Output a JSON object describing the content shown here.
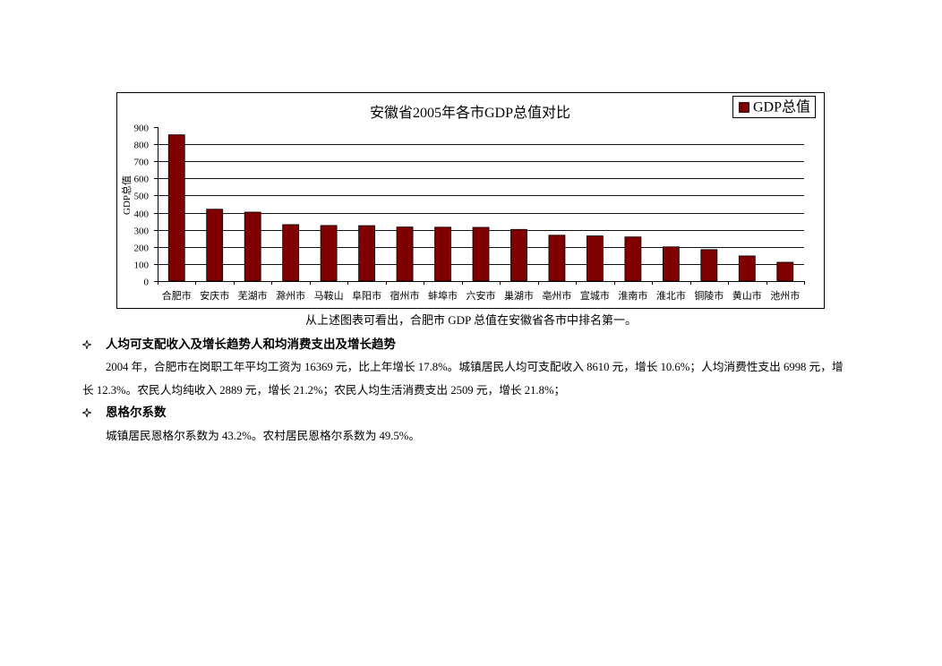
{
  "chart_data": {
    "type": "bar",
    "title": "安徽省2005年各市GDP总值对比",
    "ylabel": "GDP总值",
    "ylim": [
      0,
      900
    ],
    "yticks": [
      0,
      100,
      200,
      300,
      400,
      500,
      600,
      700,
      800,
      900
    ],
    "grid": true,
    "legend_position": "top-right",
    "categories": [
      "合肥市",
      "安庆市",
      "芜湖市",
      "滁州市",
      "马鞍山",
      "阜阳市",
      "宿州市",
      "蚌埠市",
      "六安市",
      "巢湖市",
      "亳州市",
      "宣城市",
      "淮南市",
      "淮北市",
      "铜陵市",
      "黄山市",
      "池州市"
    ],
    "series": [
      {
        "name": "GDP总值",
        "color": "#800000",
        "values": [
          855,
          420,
          403,
          330,
          325,
          324,
          316,
          315,
          314,
          302,
          268,
          264,
          258,
          200,
          184,
          147,
          110
        ]
      }
    ]
  },
  "caption": "从上述图表可看出，合肥市 GDP 总值在安徽省各市中排名第一。",
  "sections": [
    {
      "bullet_icon": "four-pointed-star-icon",
      "heading": "人均可支配收入及增长趋势人和均消费支出及增长趋势",
      "lines": [
        "2004 年，合肥市在岗职工年平均工资为 16369 元，比上年增长 17.8%。城镇居民人均可支配收入 8610 元，增长 10.6%；人均消费性支出 6998 元，增",
        "长 12.3%。农民人均纯收入 2889 元，增长 21.2%；农民人均生活消费支出 2509 元，增长 21.8%；"
      ]
    },
    {
      "bullet_icon": "four-pointed-star-icon",
      "heading": "恩格尔系数",
      "lines": [
        "城镇居民恩格尔系数为 43.2%。农村居民恩格尔系数为 49.5%。"
      ]
    }
  ]
}
